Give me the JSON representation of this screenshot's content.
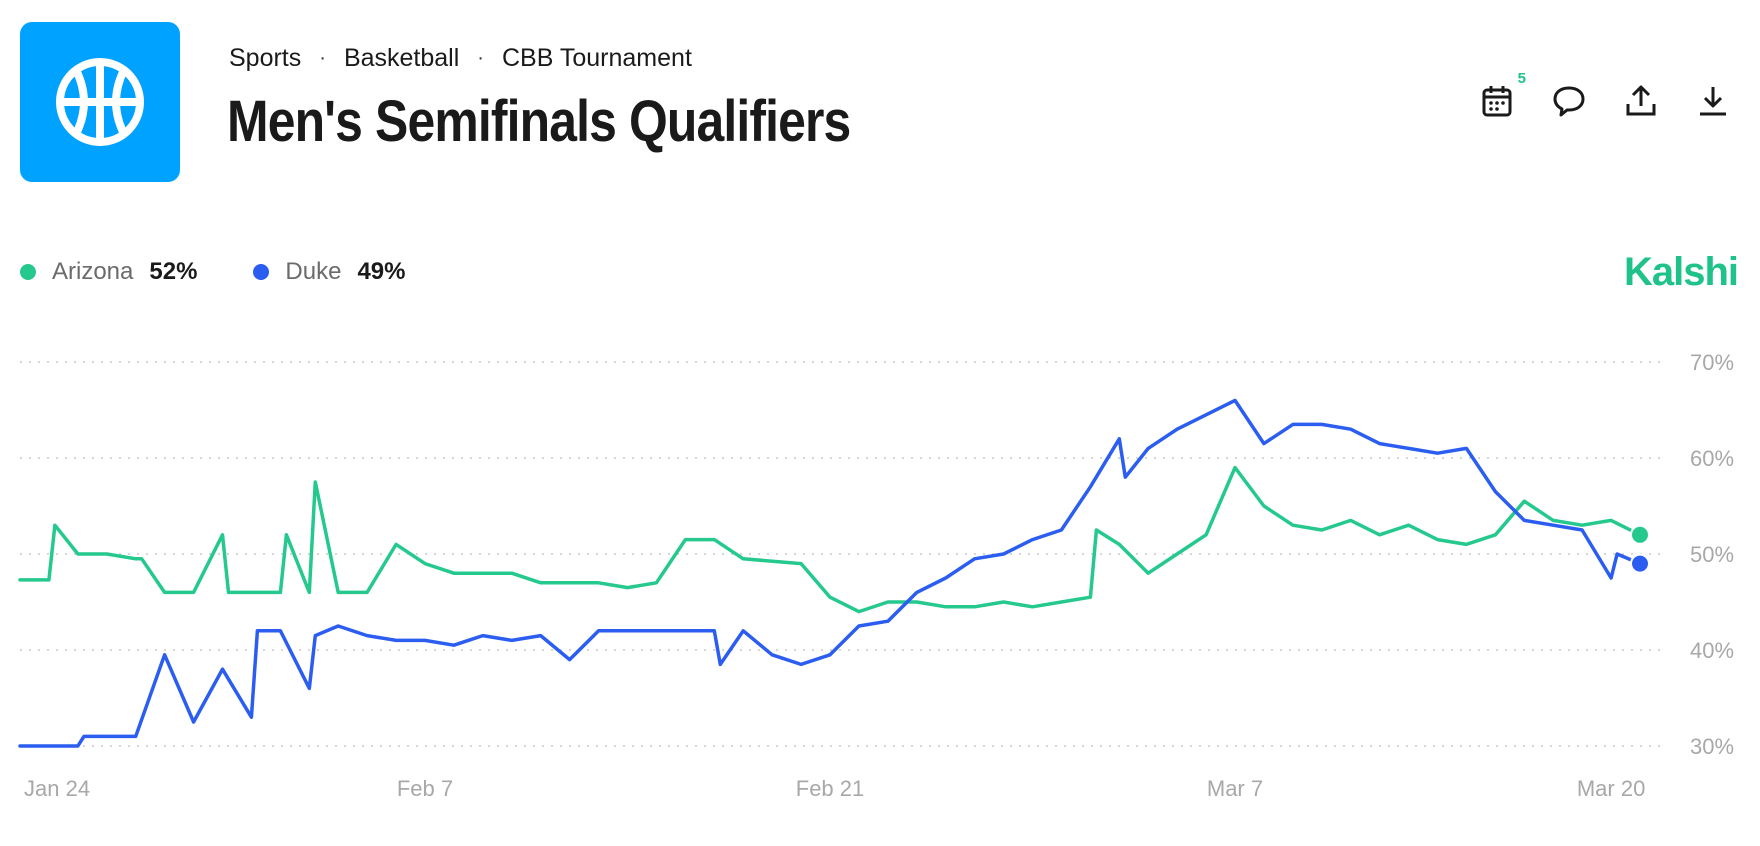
{
  "breadcrumb": {
    "items": [
      "Sports",
      "Basketball",
      "CBB Tournament"
    ],
    "separator": "·"
  },
  "title": "Men's Semifinals Qualifiers",
  "toolbar": {
    "calendar_badge": "5",
    "icons": [
      "calendar-icon",
      "comment-icon",
      "share-icon",
      "download-icon"
    ]
  },
  "brand": "Kalshi",
  "colors": {
    "tile": "#00a2ff",
    "arizona": "#25c98e",
    "duke": "#2b5ef0",
    "brand": "#1fc38a",
    "grid": "#c8c8c8",
    "axis_text": "#a8a8a8"
  },
  "legend": [
    {
      "name": "Arizona",
      "value": "52%"
    },
    {
      "name": "Duke",
      "value": "49%"
    }
  ],
  "chart_data": {
    "type": "line",
    "x_ticks": [
      "Jan 24",
      "Feb 7",
      "Feb 21",
      "Mar 7",
      "Mar 20"
    ],
    "x_range": [
      "Jan 24",
      "Mar 21"
    ],
    "y_ticks": [
      "70%",
      "60%",
      "50%",
      "40%",
      "30%"
    ],
    "ylim": [
      30,
      70
    ],
    "grid": true,
    "legend_position": "top-left",
    "series": [
      {
        "name": "Arizona",
        "points": [
          [
            "Jan 24",
            47.3
          ],
          [
            "Jan 25",
            47.3
          ],
          [
            "Jan 25",
            53
          ],
          [
            "Jan 26",
            50
          ],
          [
            "Jan 27",
            50
          ],
          [
            "Jan 28",
            49.5
          ],
          [
            "Jan 28",
            49.5
          ],
          [
            "Jan 29",
            46
          ],
          [
            "Jan 30",
            46
          ],
          [
            "Jan 31",
            52
          ],
          [
            "Jan 31",
            46
          ],
          [
            "Feb 2",
            46
          ],
          [
            "Feb 2",
            52
          ],
          [
            "Feb 3",
            46
          ],
          [
            "Feb 3",
            57.5
          ],
          [
            "Feb 4",
            46
          ],
          [
            "Feb 5",
            46
          ],
          [
            "Feb 6",
            51
          ],
          [
            "Feb 7",
            49
          ],
          [
            "Feb 8",
            48
          ],
          [
            "Feb 10",
            48
          ],
          [
            "Feb 11",
            47
          ],
          [
            "Feb 13",
            47
          ],
          [
            "Feb 14",
            46.5
          ],
          [
            "Feb 15",
            47
          ],
          [
            "Feb 16",
            51.5
          ],
          [
            "Feb 17",
            51.5
          ],
          [
            "Feb 18",
            49.5
          ],
          [
            "Feb 20",
            49
          ],
          [
            "Feb 21",
            45.5
          ],
          [
            "Feb 22",
            44
          ],
          [
            "Feb 23",
            45
          ],
          [
            "Feb 24",
            45
          ],
          [
            "Feb 25",
            44.5
          ],
          [
            "Feb 26",
            44.5
          ],
          [
            "Feb 27",
            45
          ],
          [
            "Feb 28",
            44.5
          ],
          [
            "Mar 1",
            45
          ],
          [
            "Mar 2",
            45.5
          ],
          [
            "Mar 2",
            52.5
          ],
          [
            "Mar 3",
            51
          ],
          [
            "Mar 4",
            48
          ],
          [
            "Mar 5",
            50
          ],
          [
            "Mar 6",
            52
          ],
          [
            "Mar 7",
            59
          ],
          [
            "Mar 8",
            55
          ],
          [
            "Mar 9",
            53
          ],
          [
            "Mar 10",
            52.5
          ],
          [
            "Mar 11",
            53.5
          ],
          [
            "Mar 12",
            52
          ],
          [
            "Mar 13",
            53
          ],
          [
            "Mar 14",
            51.5
          ],
          [
            "Mar 15",
            51
          ],
          [
            "Mar 16",
            52
          ],
          [
            "Mar 17",
            55.5
          ],
          [
            "Mar 18",
            53.5
          ],
          [
            "Mar 19",
            53
          ],
          [
            "Mar 20",
            53.5
          ],
          [
            "Mar 21",
            52
          ]
        ]
      },
      {
        "name": "Duke",
        "points": [
          [
            "Jan 24",
            30
          ],
          [
            "Jan 26",
            30
          ],
          [
            "Jan 26",
            31
          ],
          [
            "Jan 28",
            31
          ],
          [
            "Jan 29",
            39.5
          ],
          [
            "Jan 30",
            32.5
          ],
          [
            "Jan 31",
            38
          ],
          [
            "Feb 1",
            33
          ],
          [
            "Feb 1",
            42
          ],
          [
            "Feb 2",
            42
          ],
          [
            "Feb 3",
            36
          ],
          [
            "Feb 3",
            41.5
          ],
          [
            "Feb 4",
            42.5
          ],
          [
            "Feb 5",
            41.5
          ],
          [
            "Feb 6",
            41
          ],
          [
            "Feb 7",
            41
          ],
          [
            "Feb 8",
            40.5
          ],
          [
            "Feb 9",
            41.5
          ],
          [
            "Feb 10",
            41
          ],
          [
            "Feb 11",
            41.5
          ],
          [
            "Feb 12",
            39
          ],
          [
            "Feb 13",
            42
          ],
          [
            "Feb 15",
            42
          ],
          [
            "Feb 16",
            42
          ],
          [
            "Feb 17",
            42
          ],
          [
            "Feb 17",
            38.5
          ],
          [
            "Feb 18",
            42
          ],
          [
            "Feb 19",
            39.5
          ],
          [
            "Feb 20",
            38.5
          ],
          [
            "Feb 21",
            39.5
          ],
          [
            "Feb 22",
            42.5
          ],
          [
            "Feb 23",
            43
          ],
          [
            "Feb 24",
            46
          ],
          [
            "Feb 25",
            47.5
          ],
          [
            "Feb 26",
            49.5
          ],
          [
            "Feb 27",
            50
          ],
          [
            "Feb 28",
            51.5
          ],
          [
            "Mar 1",
            52.5
          ],
          [
            "Mar 2",
            57
          ],
          [
            "Mar 3",
            62
          ],
          [
            "Mar 3",
            58
          ],
          [
            "Mar 4",
            61
          ],
          [
            "Mar 5",
            63
          ],
          [
            "Mar 6",
            64.5
          ],
          [
            "Mar 7",
            66
          ],
          [
            "Mar 8",
            61.5
          ],
          [
            "Mar 9",
            63.5
          ],
          [
            "Mar 10",
            63.5
          ],
          [
            "Mar 11",
            63
          ],
          [
            "Mar 12",
            61.5
          ],
          [
            "Mar 13",
            61
          ],
          [
            "Mar 14",
            60.5
          ],
          [
            "Mar 15",
            61
          ],
          [
            "Mar 16",
            56.5
          ],
          [
            "Mar 17",
            53.5
          ],
          [
            "Mar 18",
            53
          ],
          [
            "Mar 19",
            52.5
          ],
          [
            "Mar 20",
            47.5
          ],
          [
            "Mar 20",
            50
          ],
          [
            "Mar 21",
            49
          ]
        ]
      }
    ]
  }
}
